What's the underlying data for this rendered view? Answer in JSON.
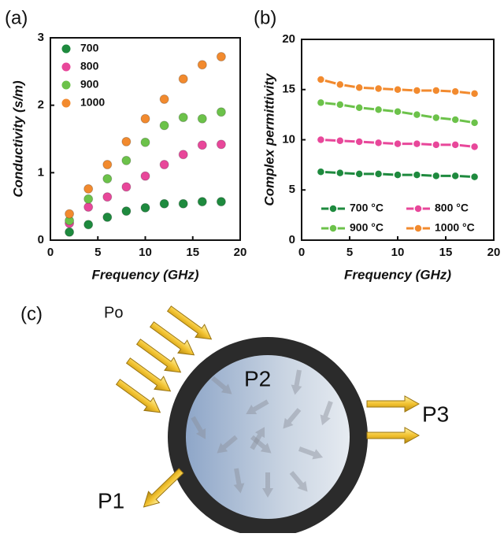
{
  "chart_data": [
    {
      "type": "scatter",
      "panel": "(a)",
      "x_label": "Frequency (GHz)",
      "y_label": "Conductivity (s/m)",
      "x": [
        2,
        4,
        6,
        8,
        10,
        12,
        14,
        16,
        18
      ],
      "series": [
        {
          "name": "700",
          "color": "#1e8a3e",
          "values": [
            0.12,
            0.23,
            0.34,
            0.43,
            0.48,
            0.54,
            0.54,
            0.57,
            0.57
          ]
        },
        {
          "name": "800",
          "color": "#e8479a",
          "values": [
            0.25,
            0.49,
            0.64,
            0.79,
            0.95,
            1.12,
            1.27,
            1.41,
            1.42
          ]
        },
        {
          "name": "900",
          "color": "#6cc24a",
          "values": [
            0.29,
            0.61,
            0.91,
            1.18,
            1.45,
            1.7,
            1.82,
            1.8,
            1.9
          ]
        },
        {
          "name": "1000",
          "color": "#f28a2e",
          "values": [
            0.39,
            0.76,
            1.12,
            1.46,
            1.8,
            2.09,
            2.39,
            2.6,
            2.72
          ]
        }
      ],
      "xlim": [
        0,
        20
      ],
      "xticks": [
        0,
        5,
        10,
        15,
        20
      ],
      "ylim": [
        0,
        3
      ],
      "yticks": [
        0,
        1,
        2,
        3
      ],
      "legend": "upper left"
    },
    {
      "type": "line",
      "panel": "(b)",
      "x_label": "Frequency (GHz)",
      "y_label": "Complex permittivity",
      "x": [
        2,
        4,
        6,
        8,
        10,
        12,
        14,
        16,
        18
      ],
      "series": [
        {
          "name": "700 °C",
          "color": "#1e8a3e",
          "values": [
            6.8,
            6.7,
            6.6,
            6.6,
            6.5,
            6.5,
            6.4,
            6.4,
            6.3
          ]
        },
        {
          "name": "800 °C",
          "color": "#e8479a",
          "values": [
            10.0,
            9.9,
            9.8,
            9.7,
            9.6,
            9.6,
            9.5,
            9.5,
            9.3
          ]
        },
        {
          "name": "900 °C",
          "color": "#6cc24a",
          "values": [
            13.7,
            13.5,
            13.2,
            13.0,
            12.8,
            12.5,
            12.2,
            12.0,
            11.7
          ]
        },
        {
          "name": "1000 °C",
          "color": "#f28a2e",
          "values": [
            16.0,
            15.5,
            15.2,
            15.1,
            15.0,
            14.9,
            14.9,
            14.8,
            14.6
          ]
        }
      ],
      "xlim": [
        0,
        20
      ],
      "xticks": [
        0,
        5,
        10,
        15,
        20
      ],
      "ylim": [
        0,
        20
      ],
      "yticks": [
        0,
        5,
        10,
        15,
        20
      ],
      "legend": "lower center"
    }
  ],
  "diagram": {
    "panel": "(c)",
    "incident": "Po",
    "absorbed": "P2",
    "transmitted": "P3",
    "reflected": "P1"
  }
}
